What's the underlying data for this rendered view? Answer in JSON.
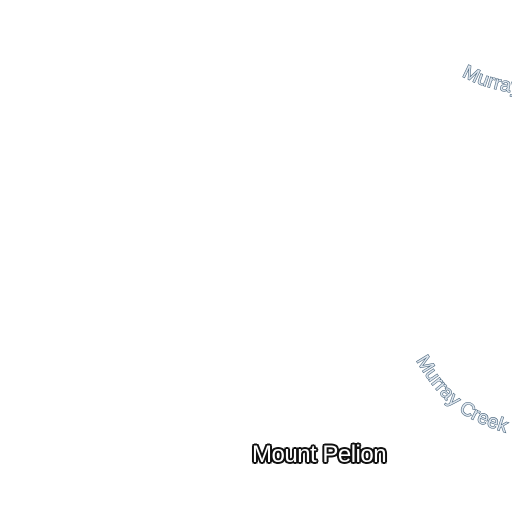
{
  "map": {
    "background_color": "#ffffff",
    "waterway_labels": [
      {
        "text": "Murray Creek",
        "fill_color": "#dfe7ef",
        "halo_color": "#3d5a73"
      },
      {
        "text": "Murray Creek",
        "fill_color": "#dfe7ef",
        "halo_color": "#3d5a73"
      }
    ],
    "place_labels": [
      {
        "text": "Mount Pelion",
        "text_color": "#ffffff",
        "halo_color": "#111111"
      }
    ]
  }
}
